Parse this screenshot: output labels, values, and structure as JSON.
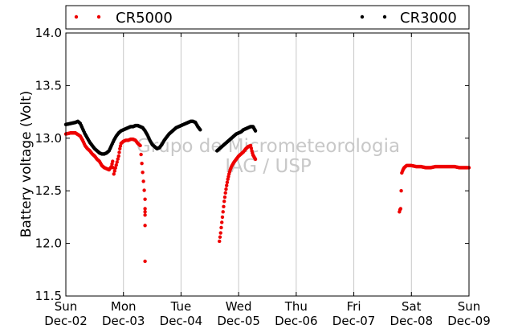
{
  "chart_data": {
    "type": "scatter",
    "title": "",
    "xlabel": "",
    "ylabel": "Battery voltage (Volt)",
    "ylim": [
      11.5,
      14.0
    ],
    "xlim": [
      "2012-12-02 00:00",
      "2012-12-09 00:00"
    ],
    "yticks": [
      "11.5",
      "12.0",
      "12.5",
      "13.0",
      "13.5",
      "14.0"
    ],
    "xticks": [
      {
        "day": "Sun",
        "date": "Dec-02"
      },
      {
        "day": "Mon",
        "date": "Dec-03"
      },
      {
        "day": "Tue",
        "date": "Dec-04"
      },
      {
        "day": "Wed",
        "date": "Dec-05"
      },
      {
        "day": "Thu",
        "date": "Dec-06"
      },
      {
        "day": "Fri",
        "date": "Dec-07"
      },
      {
        "day": "Sat",
        "date": "Dec-08"
      },
      {
        "day": "Sun",
        "date": "Dec-09"
      }
    ],
    "grid": "vertical",
    "legend": "top",
    "watermark": [
      "Grupo de Micrometeorologia",
      "IAG / USP"
    ],
    "series": [
      {
        "name": "CR5000",
        "color": "#ee0000",
        "points": [
          [
            "2012-12-02 00:00",
            13.04
          ],
          [
            "2012-12-02 02:00",
            13.05
          ],
          [
            "2012-12-02 04:00",
            13.05
          ],
          [
            "2012-12-02 06:00",
            13.02
          ],
          [
            "2012-12-02 07:00",
            12.98
          ],
          [
            "2012-12-02 08:00",
            12.93
          ],
          [
            "2012-12-02 09:00",
            12.9
          ],
          [
            "2012-12-02 10:00",
            12.88
          ],
          [
            "2012-12-02 11:00",
            12.85
          ],
          [
            "2012-12-02 12:00",
            12.83
          ],
          [
            "2012-12-02 13:00",
            12.8
          ],
          [
            "2012-12-02 14:00",
            12.78
          ],
          [
            "2012-12-02 15:00",
            12.74
          ],
          [
            "2012-12-02 16:00",
            12.72
          ],
          [
            "2012-12-02 17:00",
            12.71
          ],
          [
            "2012-12-02 18:00",
            12.7
          ],
          [
            "2012-12-02 19:00",
            12.73
          ],
          [
            "2012-12-02 19:30",
            12.78
          ],
          [
            "2012-12-02 20:00",
            12.66
          ],
          [
            "2012-12-02 22:00",
            12.83
          ],
          [
            "2012-12-02 22:30",
            12.9
          ],
          [
            "2012-12-02 23:00",
            12.95
          ],
          [
            "2012-12-03 00:00",
            12.97
          ],
          [
            "2012-12-03 01:00",
            12.98
          ],
          [
            "2012-12-03 02:00",
            12.98
          ],
          [
            "2012-12-03 03:00",
            12.99
          ],
          [
            "2012-12-03 04:00",
            12.99
          ],
          [
            "2012-12-03 05:00",
            12.98
          ],
          [
            "2012-12-03 06:00",
            12.95
          ],
          [
            "2012-12-03 07:00",
            12.93
          ],
          [
            "2012-12-03 09:00",
            12.42
          ],
          [
            "2012-12-03 09:00",
            12.33
          ],
          [
            "2012-12-03 09:00",
            12.3
          ],
          [
            "2012-12-03 09:00",
            12.27
          ],
          [
            "2012-12-03 09:00",
            12.17
          ],
          [
            "2012-12-03 09:00",
            11.83
          ],
          [
            "2012-12-04 16:00",
            12.02
          ],
          [
            "2012-12-04 16:30",
            12.1
          ],
          [
            "2012-12-04 17:00",
            12.2
          ],
          [
            "2012-12-04 17:30",
            12.3
          ],
          [
            "2012-12-04 18:00",
            12.4
          ],
          [
            "2012-12-04 18:30",
            12.48
          ],
          [
            "2012-12-04 19:00",
            12.55
          ],
          [
            "2012-12-04 19:30",
            12.61
          ],
          [
            "2012-12-04 20:00",
            12.66
          ],
          [
            "2012-12-04 20:30",
            12.7
          ],
          [
            "2012-12-04 21:00",
            12.73
          ],
          [
            "2012-12-04 22:00",
            12.77
          ],
          [
            "2012-12-04 23:00",
            12.8
          ],
          [
            "2012-12-05 00:00",
            12.83
          ],
          [
            "2012-12-05 01:00",
            12.85
          ],
          [
            "2012-12-05 02:00",
            12.87
          ],
          [
            "2012-12-05 03:00",
            12.9
          ],
          [
            "2012-12-05 04:00",
            12.92
          ],
          [
            "2012-12-05 05:00",
            12.93
          ],
          [
            "2012-12-05 05:30",
            12.88
          ],
          [
            "2012-12-05 06:00",
            12.84
          ],
          [
            "2012-12-05 06:30",
            12.82
          ],
          [
            "2012-12-05 07:00",
            12.8
          ],
          [
            "2012-12-07 19:00",
            12.3
          ],
          [
            "2012-12-07 19:15",
            12.32
          ],
          [
            "2012-12-07 19:30",
            12.33
          ],
          [
            "2012-12-07 20:00",
            12.67
          ],
          [
            "2012-12-07 20:30",
            12.7
          ],
          [
            "2012-12-07 21:00",
            12.72
          ],
          [
            "2012-12-07 22:00",
            12.74
          ],
          [
            "2012-12-08 00:00",
            12.74
          ],
          [
            "2012-12-08 02:00",
            12.73
          ],
          [
            "2012-12-08 04:00",
            12.73
          ],
          [
            "2012-12-08 06:00",
            12.72
          ],
          [
            "2012-12-08 08:00",
            12.72
          ],
          [
            "2012-12-08 10:00",
            12.73
          ],
          [
            "2012-12-08 12:00",
            12.73
          ],
          [
            "2012-12-08 14:00",
            12.73
          ],
          [
            "2012-12-08 16:00",
            12.73
          ],
          [
            "2012-12-08 18:00",
            12.73
          ],
          [
            "2012-12-08 20:00",
            12.72
          ],
          [
            "2012-12-08 22:00",
            12.72
          ],
          [
            "2012-12-09 00:00",
            12.72
          ]
        ]
      },
      {
        "name": "CR3000",
        "color": "#000000",
        "points": [
          [
            "2012-12-02 00:00",
            13.13
          ],
          [
            "2012-12-02 02:00",
            13.14
          ],
          [
            "2012-12-02 04:00",
            13.15
          ],
          [
            "2012-12-02 05:00",
            13.16
          ],
          [
            "2012-12-02 06:00",
            13.14
          ],
          [
            "2012-12-02 07:00",
            13.09
          ],
          [
            "2012-12-02 08:00",
            13.04
          ],
          [
            "2012-12-02 09:00",
            13.0
          ],
          [
            "2012-12-02 10:00",
            12.96
          ],
          [
            "2012-12-02 11:00",
            12.93
          ],
          [
            "2012-12-02 12:00",
            12.9
          ],
          [
            "2012-12-02 13:00",
            12.88
          ],
          [
            "2012-12-02 14:00",
            12.86
          ],
          [
            "2012-12-02 15:00",
            12.85
          ],
          [
            "2012-12-02 16:00",
            12.85
          ],
          [
            "2012-12-02 17:00",
            12.86
          ],
          [
            "2012-12-02 18:00",
            12.88
          ],
          [
            "2012-12-02 19:00",
            12.93
          ],
          [
            "2012-12-02 20:00",
            12.98
          ],
          [
            "2012-12-02 21:00",
            13.02
          ],
          [
            "2012-12-02 22:00",
            13.05
          ],
          [
            "2012-12-02 23:00",
            13.07
          ],
          [
            "2012-12-03 00:00",
            13.08
          ],
          [
            "2012-12-03 01:00",
            13.09
          ],
          [
            "2012-12-03 02:00",
            13.1
          ],
          [
            "2012-12-03 03:00",
            13.11
          ],
          [
            "2012-12-03 04:00",
            13.11
          ],
          [
            "2012-12-03 05:00",
            13.12
          ],
          [
            "2012-12-03 06:00",
            13.12
          ],
          [
            "2012-12-03 07:00",
            13.11
          ],
          [
            "2012-12-03 08:00",
            13.1
          ],
          [
            "2012-12-03 09:00",
            13.07
          ],
          [
            "2012-12-03 10:00",
            13.03
          ],
          [
            "2012-12-03 11:00",
            12.98
          ],
          [
            "2012-12-03 12:00",
            12.94
          ],
          [
            "2012-12-03 13:00",
            12.92
          ],
          [
            "2012-12-03 14:00",
            12.9
          ],
          [
            "2012-12-03 15:00",
            12.91
          ],
          [
            "2012-12-03 16:00",
            12.94
          ],
          [
            "2012-12-03 17:00",
            12.98
          ],
          [
            "2012-12-03 18:00",
            13.01
          ],
          [
            "2012-12-03 19:00",
            13.04
          ],
          [
            "2012-12-03 20:00",
            13.06
          ],
          [
            "2012-12-03 21:00",
            13.08
          ],
          [
            "2012-12-03 22:00",
            13.1
          ],
          [
            "2012-12-03 23:00",
            13.11
          ],
          [
            "2012-12-04 00:00",
            13.12
          ],
          [
            "2012-12-04 01:00",
            13.13
          ],
          [
            "2012-12-04 02:00",
            13.14
          ],
          [
            "2012-12-04 03:00",
            13.15
          ],
          [
            "2012-12-04 04:00",
            13.16
          ],
          [
            "2012-12-04 05:00",
            13.16
          ],
          [
            "2012-12-04 06:00",
            13.15
          ],
          [
            "2012-12-04 07:00",
            13.11
          ],
          [
            "2012-12-04 08:00",
            13.08
          ],
          [
            "2012-12-04 15:00",
            12.88
          ],
          [
            "2012-12-04 16:00",
            12.9
          ],
          [
            "2012-12-04 17:00",
            12.92
          ],
          [
            "2012-12-04 18:00",
            12.94
          ],
          [
            "2012-12-04 19:00",
            12.96
          ],
          [
            "2012-12-04 20:00",
            12.98
          ],
          [
            "2012-12-04 21:00",
            13.0
          ],
          [
            "2012-12-04 22:00",
            13.02
          ],
          [
            "2012-12-04 23:00",
            13.04
          ],
          [
            "2012-12-05 00:00",
            13.05
          ],
          [
            "2012-12-05 01:00",
            13.06
          ],
          [
            "2012-12-05 02:00",
            13.08
          ],
          [
            "2012-12-05 03:00",
            13.09
          ],
          [
            "2012-12-05 04:00",
            13.1
          ],
          [
            "2012-12-05 05:00",
            13.11
          ],
          [
            "2012-12-05 06:00",
            13.11
          ],
          [
            "2012-12-05 06:30",
            13.09
          ],
          [
            "2012-12-05 07:00",
            13.07
          ]
        ]
      }
    ]
  }
}
